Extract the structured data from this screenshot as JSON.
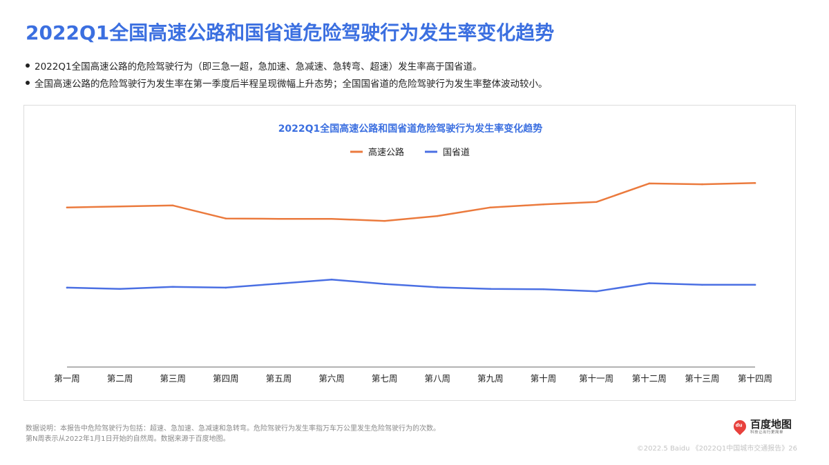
{
  "page": {
    "title": "2022Q1全国高速公路和国省道危险驾驶行为发生率变化趋势",
    "bullets": [
      "2022Q1全国高速公路的危险驾驶行为（即三急一超，急加速、急减速、急转弯、超速）发生率高于国省道。",
      "全国高速公路的危险驾驶行为发生率在第一季度后半程呈现微幅上升态势；全国国省道的危险驾驶行为发生率整体波动较小。"
    ],
    "footnotes": [
      "数据说明：本报告中危险驾驶行为包括：超速、急加速、急减速和急转弯。危险驾驶行为发生率指万车万公里发生危险驾驶行为的次数。",
      "第N周表示从2022年1月1日开始的自然周。数据来源于百度地图。"
    ],
    "logo": {
      "name": "百度地图",
      "slogan": "科技让出行更简单",
      "pin_label": "du"
    },
    "copyright": "©2022.5 Baidu 《2022Q1中国城市交通报告》26"
  },
  "chart_data": {
    "type": "line",
    "title": "2022Q1全国高速公路和国省道危险驾驶行为发生率变化趋势",
    "categories": [
      "第一周",
      "第二周",
      "第三周",
      "第四周",
      "第五周",
      "第六周",
      "第七周",
      "第八周",
      "第九周",
      "第十周",
      "第十一周",
      "第十二周",
      "第十三周",
      "第十四周"
    ],
    "series": [
      {
        "name": "高速公路",
        "color": "#eb7a3d",
        "values": [
          78.4,
          78.9,
          79.4,
          73.0,
          72.8,
          72.8,
          71.8,
          74.2,
          78.4,
          79.9,
          81.1,
          90.2,
          89.8,
          90.4
        ]
      },
      {
        "name": "国省道",
        "color": "#4a6fe3",
        "values": [
          39.0,
          38.4,
          39.4,
          39.0,
          41.0,
          43.0,
          40.8,
          39.2,
          38.4,
          38.2,
          37.2,
          41.2,
          40.4,
          40.4
        ]
      }
    ],
    "ylim": [
      0,
      100
    ],
    "legend_position": "top-center",
    "grid": false,
    "xlabel": "",
    "ylabel": ""
  }
}
